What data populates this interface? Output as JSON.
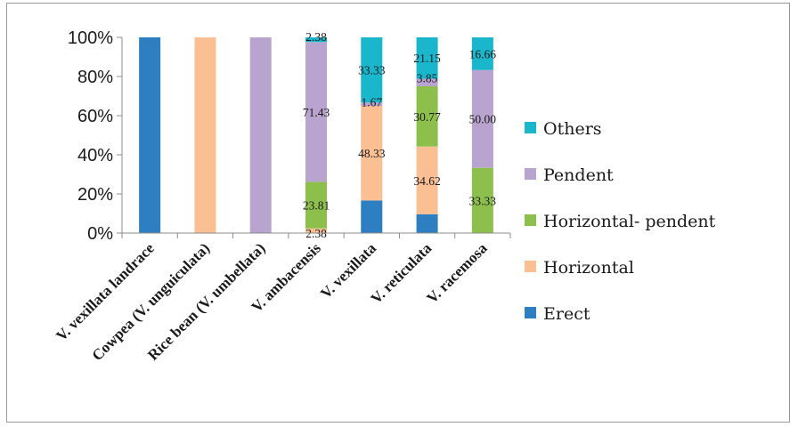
{
  "chart_data": {
    "type": "bar",
    "stacked": "percent",
    "categories": [
      "V. vexillata landrace",
      "Cowpea (V. unguiculata)",
      "Rice bean (V. umbellata)",
      "V. ambacensis",
      "V. vexillata",
      "V. reticulata",
      "V. racemosa"
    ],
    "series": [
      {
        "name": "Erect",
        "color": "#2e7fc1",
        "values": [
          100,
          0,
          0,
          0,
          16.67,
          9.62,
          0
        ],
        "labels": [
          "",
          "",
          "",
          "",
          "",
          "",
          ""
        ]
      },
      {
        "name": "Horizontal",
        "color": "#fbbf94",
        "values": [
          0,
          100,
          0,
          2.38,
          48.33,
          34.62,
          0
        ],
        "labels": [
          "",
          "",
          "",
          "2.38",
          "48.33",
          "34.62",
          ""
        ]
      },
      {
        "name": "Horizontal- pendent",
        "color": "#8cbf4c",
        "values": [
          0,
          0,
          0,
          23.81,
          0,
          30.77,
          33.33
        ],
        "labels": [
          "",
          "",
          "",
          "23.81",
          "",
          "30.77",
          "33.33"
        ]
      },
      {
        "name": "Pendent",
        "color": "#b9a3cf",
        "values": [
          0,
          0,
          100,
          71.43,
          1.67,
          3.85,
          50.0
        ],
        "labels": [
          "",
          "",
          "",
          "71.43",
          "1.67",
          "3.85",
          "50.00"
        ]
      },
      {
        "name": "Others",
        "color": "#19b6cc",
        "values": [
          0,
          0,
          0,
          2.38,
          33.33,
          21.15,
          16.66
        ],
        "labels": [
          "",
          "",
          "",
          "2.38",
          "33.33",
          "21.15",
          "16.66"
        ]
      }
    ],
    "ylim": [
      0,
      100
    ],
    "yticks": [
      "0%",
      "20%",
      "40%",
      "60%",
      "80%",
      "100%"
    ],
    "legend_order": [
      "Others",
      "Pendent",
      "Horizontal- pendent",
      "Horizontal",
      "Erect"
    ],
    "legend_position": "right",
    "grid": false
  }
}
